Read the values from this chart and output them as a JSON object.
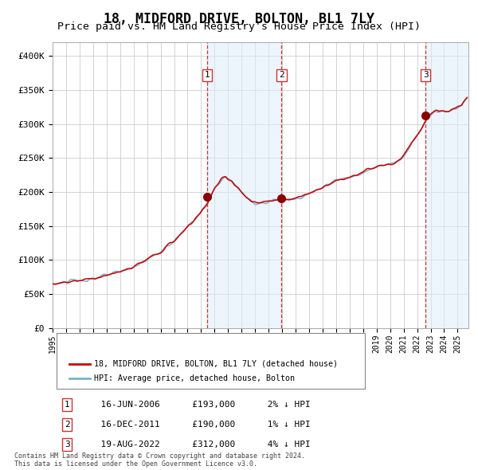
{
  "title": "18, MIDFORD DRIVE, BOLTON, BL1 7LY",
  "subtitle": "Price paid vs. HM Land Registry's House Price Index (HPI)",
  "title_fontsize": 12,
  "subtitle_fontsize": 9.5,
  "ylim": [
    0,
    420000
  ],
  "xlim_start": 1995.0,
  "xlim_end": 2025.8,
  "background_color": "#ffffff",
  "plot_bg_color": "#ffffff",
  "grid_color": "#cccccc",
  "hpi_color": "#7ab0d4",
  "price_color": "#cc0000",
  "sale_marker_color": "#880000",
  "dashed_line_color": "#cc3333",
  "shade_color": "#ddeef8",
  "shade_alpha": 0.55,
  "legend_label_price": "18, MIDFORD DRIVE, BOLTON, BL1 7LY (detached house)",
  "legend_label_hpi": "HPI: Average price, detached house, Bolton",
  "ytick_labels": [
    "£0",
    "£50K",
    "£100K",
    "£150K",
    "£200K",
    "£250K",
    "£300K",
    "£350K",
    "£400K"
  ],
  "ytick_values": [
    0,
    50000,
    100000,
    150000,
    200000,
    250000,
    300000,
    350000,
    400000
  ],
  "xtick_years": [
    1995,
    1996,
    1997,
    1998,
    1999,
    2000,
    2001,
    2002,
    2003,
    2004,
    2005,
    2006,
    2007,
    2008,
    2009,
    2010,
    2011,
    2012,
    2013,
    2014,
    2015,
    2016,
    2017,
    2018,
    2019,
    2020,
    2021,
    2022,
    2023,
    2024,
    2025
  ],
  "sales": [
    {
      "id": 1,
      "date": 2006.46,
      "price": 193000,
      "label": "1",
      "label_date": "16-JUN-2006",
      "label_price": "£193,000",
      "label_hpi": "2% ↓ HPI"
    },
    {
      "id": 2,
      "date": 2011.96,
      "price": 190000,
      "label": "2",
      "label_date": "16-DEC-2011",
      "label_price": "£190,000",
      "label_hpi": "1% ↓ HPI"
    },
    {
      "id": 3,
      "date": 2022.63,
      "price": 312000,
      "label": "3",
      "label_date": "19-AUG-2022",
      "label_price": "£312,000",
      "label_hpi": "4% ↓ HPI"
    }
  ],
  "footer_line1": "Contains HM Land Registry data © Crown copyright and database right 2024.",
  "footer_line2": "This data is licensed under the Open Government Licence v3.0.",
  "font_family": "DejaVu Sans Mono"
}
